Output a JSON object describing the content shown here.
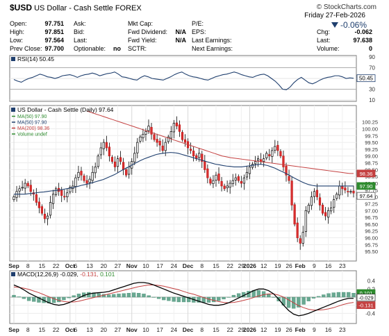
{
  "header": {
    "symbol": "$USD",
    "name": "US Dollar - Cash Settle FOREX",
    "logo": "© StockCharts.com",
    "date": "Friday 27-Feb-2026",
    "change_pct": "-0.06%",
    "change_color": "#1f3f6e",
    "col1": [
      {
        "label": "Open:",
        "value": "97.751"
      },
      {
        "label": "High:",
        "value": "97.851"
      },
      {
        "label": "Low:",
        "value": "97.564"
      },
      {
        "label": "Prev Close:",
        "value": "97.700"
      }
    ],
    "col2": [
      {
        "label": "Ask:",
        "value": ""
      },
      {
        "label": "Bid:",
        "value": ""
      },
      {
        "label": "Last:",
        "value": ""
      },
      {
        "label": "Optionable:",
        "value": "no"
      }
    ],
    "col3": [
      {
        "label": "Mkt Cap:",
        "value": ""
      },
      {
        "label": "Fwd Dividend:",
        "value": "N/A"
      },
      {
        "label": "Fwd Yield:",
        "value": "N/A"
      },
      {
        "label": "SCTR:",
        "value": ""
      }
    ],
    "col4": [
      {
        "label": "P/E:",
        "value": ""
      },
      {
        "label": "EPS:",
        "value": ""
      },
      {
        "label": "Last Earnings:",
        "value": ""
      },
      {
        "label": "Next Earnings:",
        "value": ""
      }
    ],
    "col5": [
      {
        "label": "Chg:",
        "value": "-0.062"
      },
      {
        "label": "Last:",
        "value": "97.638"
      },
      {
        "label": "Volume:",
        "value": "0"
      }
    ]
  },
  "chart_data": [
    {
      "type": "line",
      "panel": "rsi",
      "legend": "RSI(14) 50.45",
      "last_label": "50.45",
      "ylim": [
        10,
        90
      ],
      "yticks": [
        10,
        30,
        50,
        70,
        90
      ],
      "band_lines": [
        30,
        70
      ],
      "line_color": "#1f3f6e",
      "values": [
        48,
        45,
        43,
        47,
        50,
        52,
        55,
        58,
        56,
        53,
        52,
        50,
        52,
        55,
        56,
        57,
        55,
        52,
        55,
        57,
        58,
        60,
        58,
        55,
        57,
        59,
        60,
        62,
        58,
        53,
        52,
        50,
        48,
        47,
        52,
        55,
        53,
        50,
        49,
        48,
        47,
        50,
        53,
        57,
        60,
        62,
        58,
        55,
        53,
        52,
        50,
        48,
        47,
        50,
        53,
        55,
        57,
        58,
        60,
        62,
        60,
        57,
        55,
        53,
        52,
        55,
        57,
        58,
        55,
        50,
        45,
        38,
        30,
        29,
        34,
        42,
        48,
        52,
        47,
        42,
        40,
        43,
        47,
        50,
        52,
        53,
        55,
        55,
        53,
        50,
        51,
        50.45
      ]
    },
    {
      "type": "candlestick",
      "panel": "price",
      "legend": "US Dollar - Cash Settle (Daily) 97.64",
      "ylim": [
        95.25,
        100.75
      ],
      "yticks": [
        95.5,
        95.75,
        96.0,
        96.25,
        96.5,
        96.75,
        97.0,
        97.25,
        97.5,
        97.75,
        98.0,
        98.25,
        98.5,
        98.75,
        99.0,
        99.25,
        99.5,
        99.75,
        100.0,
        100.25
      ],
      "series": [
        {
          "name": "MA(50) 97.90",
          "color": "#2e8b2e",
          "values": []
        },
        {
          "name": "MA(50) 97.90",
          "color": "#1f3f6e",
          "values": [
            97.6,
            97.6,
            97.6,
            97.6,
            97.62,
            97.63,
            97.65,
            97.67,
            97.68,
            97.7,
            97.72,
            97.73,
            97.75,
            97.77,
            97.8,
            97.82,
            97.85,
            97.88,
            97.92,
            97.95,
            97.98,
            98.02,
            98.06,
            98.1,
            98.14,
            98.2,
            98.26,
            98.32,
            98.4,
            98.48,
            98.55,
            98.62,
            98.7,
            98.77,
            98.84,
            98.9,
            98.95,
            99.0,
            99.05,
            99.08,
            99.1,
            99.12,
            99.13,
            99.12,
            99.1,
            99.06,
            99.02,
            98.98,
            98.94,
            98.9,
            98.86,
            98.82,
            98.78,
            98.74,
            98.7,
            98.68,
            98.65,
            98.63,
            98.62,
            98.6,
            98.6,
            98.6,
            98.62,
            98.64,
            98.66,
            98.68,
            98.7,
            98.68,
            98.65,
            98.6,
            98.55,
            98.48,
            98.42,
            98.35,
            98.28,
            98.2,
            98.13,
            98.06,
            98.0,
            97.95,
            97.92,
            97.9,
            97.9,
            97.9,
            97.9,
            97.9,
            97.9,
            97.9,
            97.9,
            97.9,
            97.9,
            97.9
          ]
        },
        {
          "name": "MA(200) 98.36",
          "color": "#c44040",
          "values": [
            100.65,
            100.6,
            100.55,
            100.5,
            100.45,
            100.4,
            100.35,
            100.3,
            100.25,
            100.2,
            100.15,
            100.1,
            100.05,
            100.0,
            99.95,
            99.9,
            99.85,
            99.8,
            99.75,
            99.7,
            99.65,
            99.6,
            99.55,
            99.5,
            99.45,
            99.4,
            99.35,
            99.3,
            99.25,
            99.2,
            99.15,
            99.1,
            99.05,
            99.0,
            98.97,
            98.94,
            98.92,
            98.9,
            98.88,
            98.86,
            98.84,
            98.82,
            98.8,
            98.78,
            98.76,
            98.74,
            98.72,
            98.7,
            98.68,
            98.66,
            98.64,
            98.62,
            98.6,
            98.58,
            98.56,
            98.54,
            98.52,
            98.5,
            98.48,
            98.46,
            98.44,
            98.42,
            98.4,
            98.38,
            98.36,
            98.36
          ]
        },
        {
          "name": "Volume undef",
          "color": "#2e8b2e",
          "values": []
        }
      ],
      "ma200_start_index": 26,
      "last_labels": [
        {
          "text": "98.36",
          "value": 98.36,
          "color": "#c44040"
        },
        {
          "text": "97.90",
          "value": 97.9,
          "color": "#2e8b2e"
        },
        {
          "text": "97.64",
          "value": 97.64,
          "color": "#000000"
        }
      ],
      "x_labels": [
        {
          "text": "Sep",
          "index": 0,
          "bold": true
        },
        {
          "text": "8",
          "index": 5
        },
        {
          "text": "15",
          "index": 10
        },
        {
          "text": "22",
          "index": 15
        },
        {
          "text": "Oct",
          "index": 20,
          "bold": true
        },
        {
          "text": "6",
          "index": 22
        },
        {
          "text": "13",
          "index": 27
        },
        {
          "text": "20",
          "index": 32
        },
        {
          "text": "27",
          "index": 37
        },
        {
          "text": "Nov",
          "index": 42,
          "bold": true
        },
        {
          "text": "10",
          "index": 47
        },
        {
          "text": "17",
          "index": 52
        },
        {
          "text": "24",
          "index": 57
        },
        {
          "text": "Dec",
          "index": 62,
          "bold": true
        },
        {
          "text": "8",
          "index": 67
        },
        {
          "text": "15",
          "index": 72
        },
        {
          "text": "22",
          "index": 77
        },
        {
          "text": "29",
          "index": 81
        },
        {
          "text": "2026",
          "index": 84,
          "bold": true
        },
        {
          "text": "12",
          "index": 89
        },
        {
          "text": "19",
          "index": 94
        },
        {
          "text": "26",
          "index": 98
        },
        {
          "text": "Feb",
          "index": 102,
          "bold": true
        },
        {
          "text": "9",
          "index": 107
        },
        {
          "text": "16",
          "index": 112
        },
        {
          "text": "23",
          "index": 117
        }
      ],
      "x_count": 122,
      "closes": [
        97.5,
        97.7,
        97.8,
        97.85,
        98.0,
        97.9,
        97.7,
        97.6,
        97.3,
        97.1,
        96.9,
        96.7,
        96.8,
        97.3,
        97.6,
        97.8,
        97.7,
        97.55,
        97.5,
        97.65,
        97.85,
        97.9,
        98.2,
        98.4,
        98.3,
        98.1,
        98.0,
        98.15,
        98.4,
        98.6,
        99.0,
        99.3,
        99.5,
        99.3,
        99.0,
        98.8,
        98.6,
        98.9,
        98.8,
        98.5,
        98.3,
        98.6,
        98.8,
        99.1,
        99.5,
        99.7,
        99.8,
        99.9,
        100.1,
        99.8,
        99.6,
        99.5,
        99.4,
        99.2,
        99.5,
        99.7,
        99.9,
        100.2,
        100.1,
        99.9,
        99.6,
        99.5,
        99.3,
        99.2,
        99.0,
        98.9,
        99.1,
        98.8,
        98.5,
        98.2,
        98.0,
        98.1,
        98.3,
        98.1,
        97.9,
        97.8,
        97.9,
        98.0,
        98.1,
        98.2,
        98.1,
        98.0,
        98.2,
        98.4,
        98.6,
        98.7,
        98.8,
        98.9,
        98.8,
        98.9,
        99.1,
        99.0,
        99.2,
        99.35,
        99.2,
        99.0,
        98.6,
        98.3,
        98.1,
        97.2,
        96.5,
        96.0,
        95.8,
        96.2,
        97.0,
        97.2,
        97.5,
        97.7,
        97.5,
        97.2,
        96.9,
        96.8,
        97.0,
        97.1,
        97.4,
        97.6,
        97.9,
        97.8,
        97.75,
        97.7,
        97.7,
        97.64
      ]
    },
    {
      "type": "line",
      "panel": "macd",
      "legend": "MACD(12,26,9) -0.029, -0.131, 0.101",
      "legend_parts": [
        "MACD(12,26,9)",
        "-0.029,",
        "-0.131,",
        "0.101"
      ],
      "ylim": [
        -0.6,
        0.6
      ],
      "yticks": [
        -0.4,
        -0.2,
        0.0,
        0.2,
        0.4
      ],
      "last_labels": [
        {
          "text": "0.101",
          "value": 0.101,
          "color": "#2e8b2e"
        },
        {
          "text": "-0.029",
          "value": -0.029,
          "color": "#000000"
        },
        {
          "text": "-0.131",
          "value": -0.131,
          "color": "#c44040"
        }
      ],
      "series": [
        {
          "name": "MACD",
          "color": "#000000",
          "values": [
            0.3,
            0.25,
            0.18,
            0.1,
            0.04,
            -0.02,
            -0.08,
            -0.14,
            -0.18,
            -0.2,
            -0.18,
            -0.14,
            -0.08,
            -0.02,
            0.04,
            0.08,
            0.1,
            0.11,
            0.12,
            0.14,
            0.18,
            0.22,
            0.26,
            0.3,
            0.34,
            0.36,
            0.36,
            0.34,
            0.3,
            0.25,
            0.2,
            0.15,
            0.1,
            0.06,
            0.02,
            -0.02,
            -0.06,
            -0.1,
            -0.14,
            -0.18,
            -0.2,
            -0.2,
            -0.18,
            -0.14,
            -0.08,
            -0.02,
            0.04,
            0.1,
            0.16,
            0.2,
            0.2,
            0.16,
            0.08,
            -0.05,
            -0.2,
            -0.33,
            -0.42,
            -0.46,
            -0.44,
            -0.4,
            -0.35,
            -0.3,
            -0.25,
            -0.2,
            -0.15,
            -0.1,
            -0.06,
            -0.03,
            -0.03
          ]
        },
        {
          "name": "Signal",
          "color": "#c44040",
          "values": [
            0.25,
            0.24,
            0.22,
            0.19,
            0.15,
            0.11,
            0.06,
            0.01,
            -0.04,
            -0.08,
            -0.11,
            -0.12,
            -0.12,
            -0.1,
            -0.07,
            -0.04,
            -0.01,
            0.02,
            0.05,
            0.08,
            0.11,
            0.14,
            0.17,
            0.2,
            0.23,
            0.26,
            0.28,
            0.3,
            0.3,
            0.29,
            0.27,
            0.24,
            0.21,
            0.18,
            0.14,
            0.1,
            0.07,
            0.03,
            -0.01,
            -0.05,
            -0.08,
            -0.11,
            -0.13,
            -0.14,
            -0.13,
            -0.11,
            -0.08,
            -0.05,
            -0.01,
            0.03,
            0.06,
            0.08,
            0.08,
            0.05,
            0.0,
            -0.07,
            -0.14,
            -0.21,
            -0.26,
            -0.3,
            -0.32,
            -0.32,
            -0.31,
            -0.29,
            -0.26,
            -0.22,
            -0.18,
            -0.15,
            -0.13
          ]
        },
        {
          "name": "Histogram",
          "color": "#3c8a6c",
          "values": []
        }
      ]
    }
  ]
}
